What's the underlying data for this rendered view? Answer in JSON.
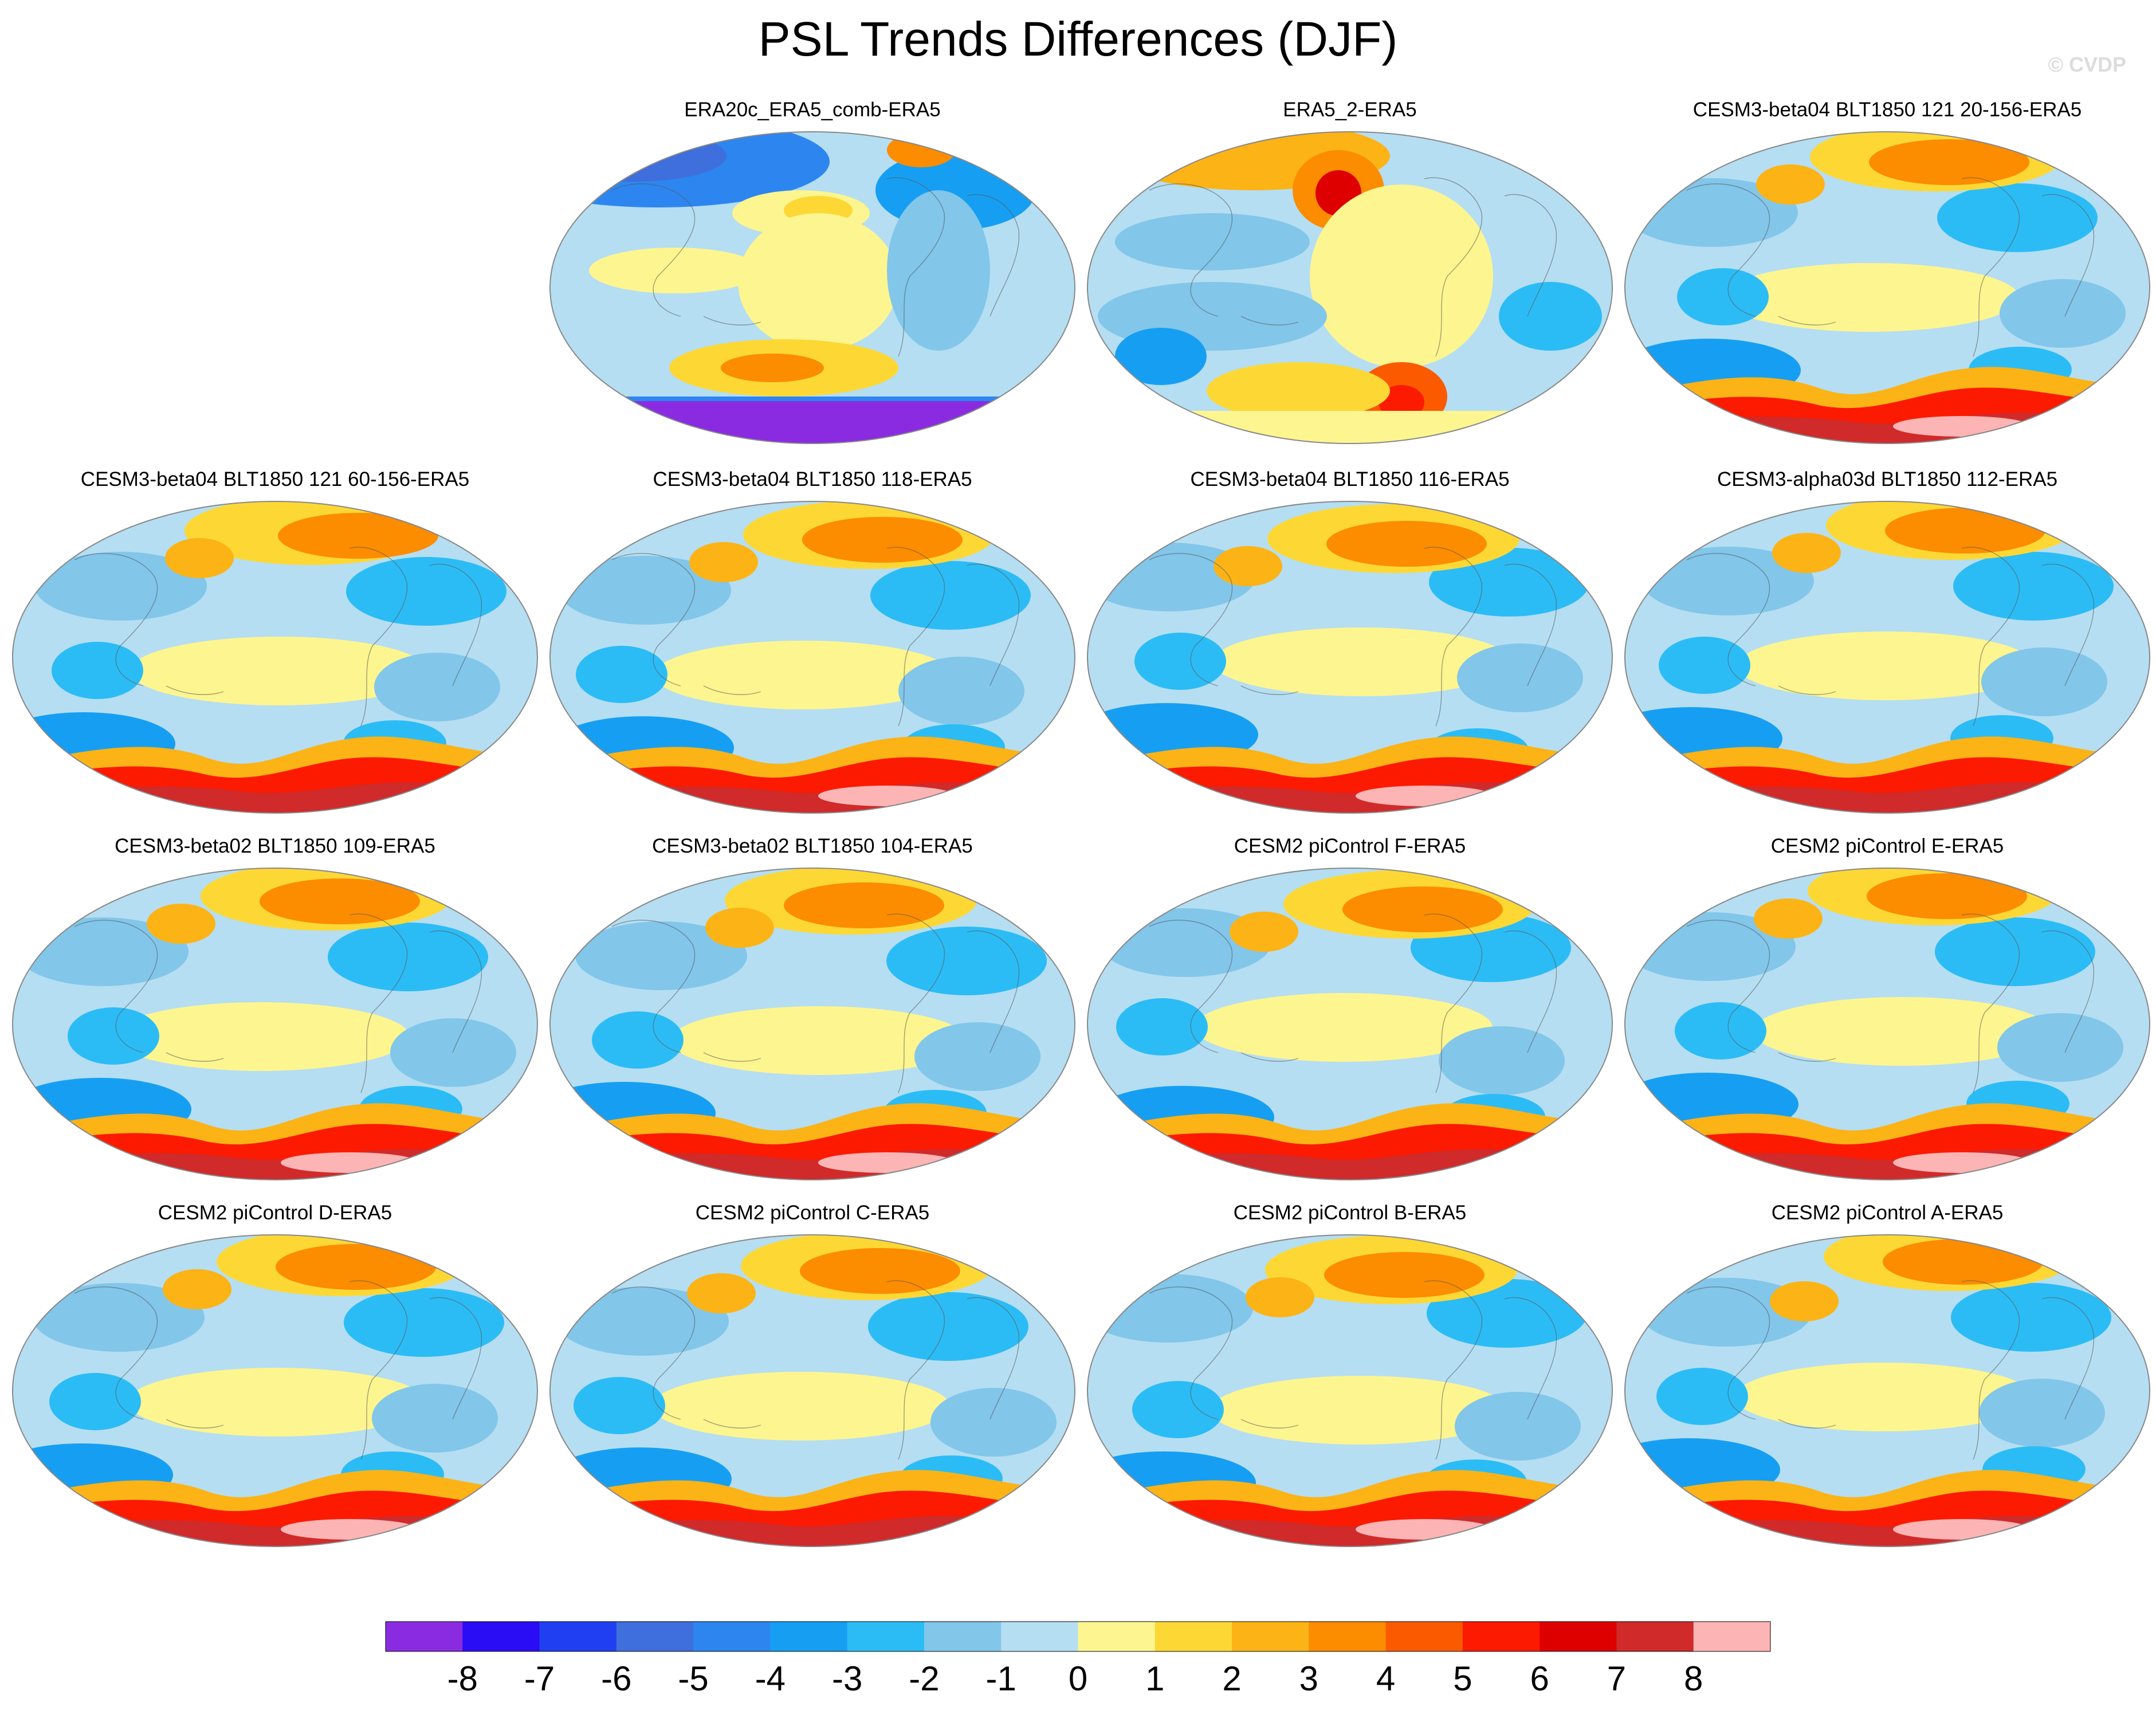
{
  "figure": {
    "title": "PSL Trends Differences (DJF)",
    "watermark": "© CVDP"
  },
  "panels": [
    {
      "label": "ERA20c_ERA5_comb-ERA5",
      "style": "era20c"
    },
    {
      "label": "ERA5_2-ERA5",
      "style": "era5"
    },
    {
      "label": "CESM3-beta04 BLT1850 121 20-156-ERA5",
      "style": "model"
    },
    {
      "label": "CESM3-beta04 BLT1850 121 60-156-ERA5",
      "style": "model"
    },
    {
      "label": "CESM3-beta04 BLT1850 118-ERA5",
      "style": "model"
    },
    {
      "label": "CESM3-beta04 BLT1850 116-ERA5",
      "style": "model"
    },
    {
      "label": "CESM3-alpha03d BLT1850 112-ERA5",
      "style": "model"
    },
    {
      "label": "CESM3-beta02 BLT1850 109-ERA5",
      "style": "model"
    },
    {
      "label": "CESM3-beta02 BLT1850 104-ERA5",
      "style": "model"
    },
    {
      "label": "CESM2 piControl F-ERA5",
      "style": "model"
    },
    {
      "label": "CESM2 piControl E-ERA5",
      "style": "model"
    },
    {
      "label": "CESM2 piControl D-ERA5",
      "style": "model"
    },
    {
      "label": "CESM2 piControl C-ERA5",
      "style": "model"
    },
    {
      "label": "CESM2 piControl B-ERA5",
      "style": "model"
    },
    {
      "label": "CESM2 piControl A-ERA5",
      "style": "model"
    }
  ],
  "colorbar": {
    "labels": [
      "-8",
      "-7",
      "-6",
      "-5",
      "-4",
      "-3",
      "-2",
      "-1",
      "0",
      "1",
      "2",
      "3",
      "4",
      "5",
      "6",
      "7",
      "8"
    ],
    "colors": [
      "#8a2be2",
      "#2a0cf5",
      "#1f3ff0",
      "#3f6fdc",
      "#2d86f0",
      "#169ff2",
      "#2cbcf5",
      "#82c6ea",
      "#b5def2",
      "#fdf58f",
      "#fdd835",
      "#fcb316",
      "#fc8c00",
      "#fc5a00",
      "#fc1a00",
      "#de0000",
      "#d02a2a",
      "#fdb4b4"
    ]
  }
}
